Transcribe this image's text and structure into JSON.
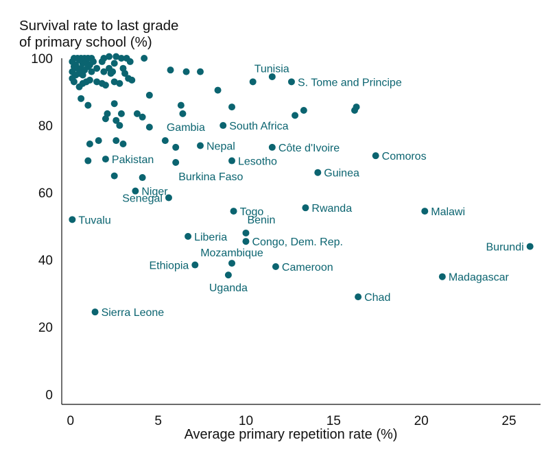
{
  "chart_data": {
    "type": "scatter",
    "ylabel": "Survival rate to last grade\nof primary school (%)",
    "xlabel": "Average primary repetition rate (%)",
    "xlim": [
      -0.5,
      26.8
    ],
    "ylim": [
      -3,
      100
    ],
    "xticks": [
      0,
      5,
      10,
      15,
      20,
      25
    ],
    "yticks": [
      0,
      20,
      40,
      60,
      80,
      100
    ],
    "grid": false,
    "point_color": "#0b6470",
    "points": [
      {
        "label": "Tunisia",
        "x": 10.4,
        "y": 93,
        "label_pos": "above-right"
      },
      {
        "label": "S. Tome and Principe",
        "x": 12.6,
        "y": 93,
        "label_pos": "right"
      },
      {
        "label": "South Africa",
        "x": 8.7,
        "y": 80,
        "label_pos": "right"
      },
      {
        "label": "Gambia",
        "x": 5.4,
        "y": 75.5,
        "label_pos": "above-right"
      },
      {
        "label": "Nepal",
        "x": 7.4,
        "y": 74,
        "label_pos": "right"
      },
      {
        "label": "Côte d'Ivoire",
        "x": 11.5,
        "y": 73.5,
        "label_pos": "right"
      },
      {
        "label": "Comoros",
        "x": 17.4,
        "y": 71,
        "label_pos": "right"
      },
      {
        "label": "Pakistan",
        "x": 2,
        "y": 70,
        "label_pos": "right"
      },
      {
        "label": "Lesotho",
        "x": 9.2,
        "y": 69.5,
        "label_pos": "right"
      },
      {
        "label": "Burkina Faso",
        "x": 6,
        "y": 69,
        "label_pos": "below-right"
      },
      {
        "label": "Guinea",
        "x": 14.1,
        "y": 66,
        "label_pos": "right"
      },
      {
        "label": "Niger",
        "x": 3.7,
        "y": 60.5,
        "label_pos": "right"
      },
      {
        "label": "Senegal",
        "x": 5.6,
        "y": 58.5,
        "label_pos": "left"
      },
      {
        "label": "Rwanda",
        "x": 13.4,
        "y": 55.5,
        "label_pos": "right"
      },
      {
        "label": "Togo",
        "x": 9.3,
        "y": 54.5,
        "label_pos": "right"
      },
      {
        "label": "Malawi",
        "x": 20.2,
        "y": 54.5,
        "label_pos": "right"
      },
      {
        "label": "Tuvalu",
        "x": 0.1,
        "y": 52,
        "label_pos": "right"
      },
      {
        "label": "Benin",
        "x": 10,
        "y": 48,
        "label_pos": "above-right"
      },
      {
        "label": "Liberia",
        "x": 6.7,
        "y": 47,
        "label_pos": "right"
      },
      {
        "label": "Congo, Dem. Rep.",
        "x": 10,
        "y": 45.5,
        "label_pos": "right"
      },
      {
        "label": "Burundi",
        "x": 26.2,
        "y": 44,
        "label_pos": "left"
      },
      {
        "label": "Mozambique",
        "x": 9.2,
        "y": 39,
        "label_pos": "above"
      },
      {
        "label": "Ethiopia",
        "x": 7.1,
        "y": 38.5,
        "label_pos": "left"
      },
      {
        "label": "Cameroon",
        "x": 11.7,
        "y": 38,
        "label_pos": "right"
      },
      {
        "label": "Uganda",
        "x": 9,
        "y": 35.5,
        "label_pos": "below"
      },
      {
        "label": "Madagascar",
        "x": 21.2,
        "y": 35,
        "label_pos": "right"
      },
      {
        "label": "Chad",
        "x": 16.4,
        "y": 29,
        "label_pos": "right"
      },
      {
        "label": "Sierra Leone",
        "x": 1.4,
        "y": 24.5,
        "label_pos": "right"
      },
      {
        "x": 0.1,
        "y": 99
      },
      {
        "x": 0.2,
        "y": 100
      },
      {
        "x": 0.3,
        "y": 98
      },
      {
        "x": 0.4,
        "y": 100
      },
      {
        "x": 0.5,
        "y": 99.5
      },
      {
        "x": 0.6,
        "y": 100
      },
      {
        "x": 0.7,
        "y": 98.5
      },
      {
        "x": 0.8,
        "y": 100
      },
      {
        "x": 0.9,
        "y": 99
      },
      {
        "x": 1,
        "y": 100
      },
      {
        "x": 1.1,
        "y": 98
      },
      {
        "x": 1.2,
        "y": 100
      },
      {
        "x": 1.3,
        "y": 99
      },
      {
        "x": 0.2,
        "y": 97.5
      },
      {
        "x": 0.4,
        "y": 97
      },
      {
        "x": 0.6,
        "y": 97
      },
      {
        "x": 0.8,
        "y": 96.5
      },
      {
        "x": 1,
        "y": 97.5
      },
      {
        "x": 0.1,
        "y": 96
      },
      {
        "x": 0.3,
        "y": 95
      },
      {
        "x": 0.5,
        "y": 95.5
      },
      {
        "x": 0.7,
        "y": 95
      },
      {
        "x": 1.2,
        "y": 96
      },
      {
        "x": 1.5,
        "y": 97
      },
      {
        "x": 1.8,
        "y": 99
      },
      {
        "x": 1.9,
        "y": 100
      },
      {
        "x": 2.2,
        "y": 97
      },
      {
        "x": 2.2,
        "y": 100.5
      },
      {
        "x": 2.4,
        "y": 96
      },
      {
        "x": 2.5,
        "y": 98.5
      },
      {
        "x": 2.6,
        "y": 100.5
      },
      {
        "x": 2.9,
        "y": 100
      },
      {
        "x": 3,
        "y": 97
      },
      {
        "x": 3.1,
        "y": 95.5
      },
      {
        "x": 3.2,
        "y": 100
      },
      {
        "x": 3.4,
        "y": 99
      },
      {
        "x": 3.5,
        "y": 93.5
      },
      {
        "x": 4.2,
        "y": 100
      },
      {
        "x": 0.1,
        "y": 94
      },
      {
        "x": 0.2,
        "y": 93
      },
      {
        "x": 0.5,
        "y": 91.5
      },
      {
        "x": 0.7,
        "y": 92.5
      },
      {
        "x": 0.9,
        "y": 93
      },
      {
        "x": 1.1,
        "y": 93.5
      },
      {
        "x": 1.5,
        "y": 93
      },
      {
        "x": 1.8,
        "y": 92.5
      },
      {
        "x": 2,
        "y": 92
      },
      {
        "x": 2.3,
        "y": 95.5
      },
      {
        "x": 2.5,
        "y": 93
      },
      {
        "x": 2.8,
        "y": 92.5
      },
      {
        "x": 3.3,
        "y": 94
      },
      {
        "x": 1.9,
        "y": 96
      },
      {
        "x": 0.6,
        "y": 88
      },
      {
        "x": 1,
        "y": 86
      },
      {
        "x": 2.5,
        "y": 86.5
      },
      {
        "x": 4.5,
        "y": 89
      },
      {
        "x": 5.7,
        "y": 96.5
      },
      {
        "x": 6.6,
        "y": 96
      },
      {
        "x": 7.4,
        "y": 96
      },
      {
        "x": 8.4,
        "y": 90.5
      },
      {
        "x": 11.5,
        "y": 94.5
      },
      {
        "x": 6.3,
        "y": 86
      },
      {
        "x": 6.4,
        "y": 83.5
      },
      {
        "x": 9.2,
        "y": 85.5
      },
      {
        "x": 12.8,
        "y": 83
      },
      {
        "x": 13.3,
        "y": 84.5
      },
      {
        "x": 16.2,
        "y": 84.5
      },
      {
        "x": 16.3,
        "y": 85.5
      },
      {
        "x": 2,
        "y": 82
      },
      {
        "x": 2.1,
        "y": 83.5
      },
      {
        "x": 2.6,
        "y": 81.5
      },
      {
        "x": 2.9,
        "y": 83.5
      },
      {
        "x": 2.8,
        "y": 80
      },
      {
        "x": 3.8,
        "y": 83.5
      },
      {
        "x": 4.1,
        "y": 82.5
      },
      {
        "x": 4.5,
        "y": 79.5
      },
      {
        "x": 1.6,
        "y": 75.5
      },
      {
        "x": 1.1,
        "y": 74.5
      },
      {
        "x": 2.6,
        "y": 75.5
      },
      {
        "x": 3,
        "y": 74.5
      },
      {
        "x": 6,
        "y": 73.5
      },
      {
        "x": 1,
        "y": 69.5
      },
      {
        "x": 2.5,
        "y": 65
      },
      {
        "x": 4.1,
        "y": 64.5
      }
    ]
  }
}
